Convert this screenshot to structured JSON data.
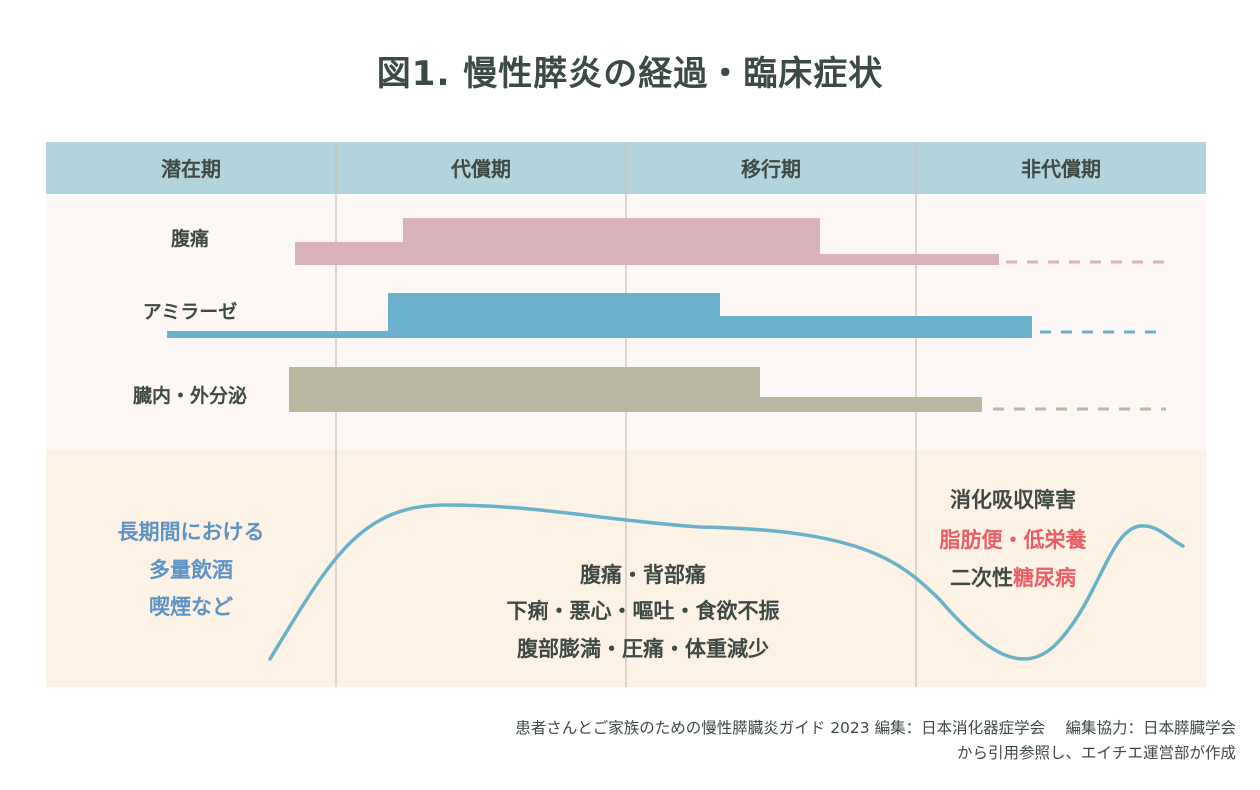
{
  "title": "図1. 慢性膵炎の経過・臨床症状",
  "phases": [
    "潜在期",
    "代償期",
    "移行期",
    "非代償期"
  ],
  "rows": [
    {
      "label": "腹痛",
      "color": "#dab2ba"
    },
    {
      "label": "アミラーゼ",
      "color": "#6ab1cc"
    },
    {
      "label": "臓内・外分泌",
      "color": "#b9b8a0"
    }
  ],
  "causes": [
    "長期間における",
    "多量飲酒",
    "喫煙など"
  ],
  "middle_symptoms": [
    "腹痛・背部痛",
    "下痢・悪心・嘔吐・食欲不振",
    "腹部膨満・圧痛・体重減少"
  ],
  "late_symptoms": {
    "line1": "消化吸収障害",
    "line2": "脂肪便・低栄養",
    "line3_plain": "二次性",
    "line3_red": "糖尿病"
  },
  "colors": {
    "header_bg": "#b1d4de",
    "upper_bg": "#fdf8f5",
    "lower_bg": "#fcf2e5",
    "curve": "#6ab1cc",
    "divider": "#c7c4b8",
    "highlight": "#ea5e66",
    "cause_text": "#5f93c4"
  },
  "source": {
    "line1": "患者さんとご家族のための慢性膵臓炎ガイド 2023 編集：日本消化器症学会　 編集協力：日本膵臓学会",
    "line2": "から引用参照し、エイチエ運営部が作成"
  }
}
